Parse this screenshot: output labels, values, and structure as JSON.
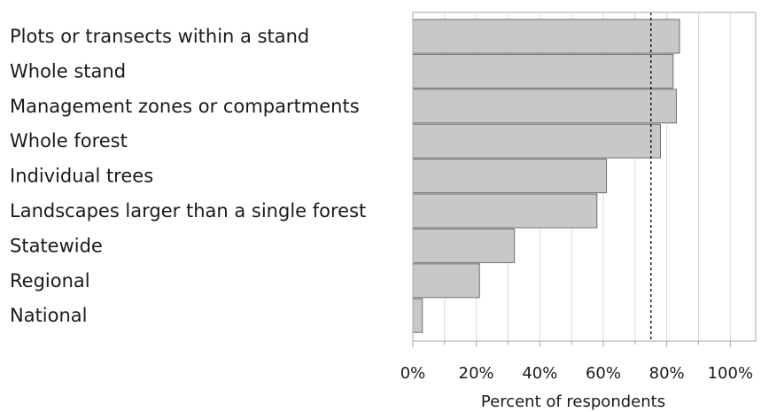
{
  "chart_data": {
    "type": "bar",
    "orientation": "horizontal",
    "categories": [
      "Plots or transects within a stand",
      "Whole stand",
      "Management zones or compartments",
      "Whole forest",
      "Individual trees",
      "Landscapes larger than a single forest",
      "Statewide",
      "Regional",
      "National"
    ],
    "values": [
      84,
      82,
      83,
      78,
      61,
      58,
      32,
      21,
      3
    ],
    "xlabel": "Percent of respondents",
    "xlim": [
      0,
      108
    ],
    "xticks": [
      0,
      20,
      40,
      60,
      80,
      100
    ],
    "xtick_labels": [
      "0%",
      "20%",
      "40%",
      "60%",
      "80%",
      "100%"
    ],
    "reference_line": 75,
    "grid": true,
    "colors": {
      "bar_fill": "#c8c8c8",
      "bar_edge": "#6e6e6e",
      "grid": "#d9d9d9",
      "reference_line": "#000000"
    }
  }
}
